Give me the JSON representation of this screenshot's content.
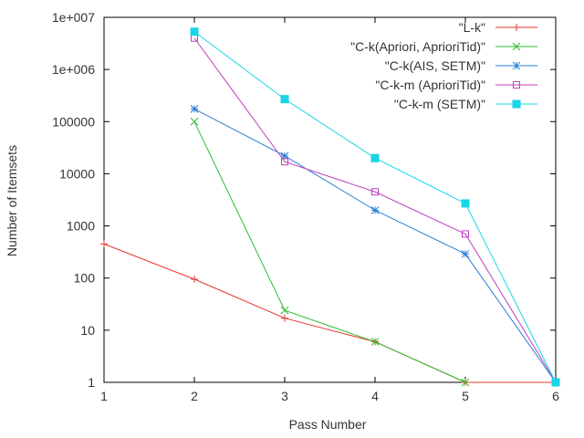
{
  "chart_data": {
    "type": "line",
    "xlabel": "Pass Number",
    "ylabel": "Number of Itemsets",
    "yscale": "log",
    "xlim": [
      1,
      6
    ],
    "ylim": [
      1,
      10000000
    ],
    "xticks": [
      {
        "value": 1,
        "label": "1"
      },
      {
        "value": 2,
        "label": "2"
      },
      {
        "value": 3,
        "label": "3"
      },
      {
        "value": 4,
        "label": "4"
      },
      {
        "value": 5,
        "label": "5"
      },
      {
        "value": 6,
        "label": "6"
      }
    ],
    "yticks": [
      {
        "value": 1,
        "label": "1"
      },
      {
        "value": 10,
        "label": "10"
      },
      {
        "value": 100,
        "label": "100"
      },
      {
        "value": 1000,
        "label": "1000"
      },
      {
        "value": 10000,
        "label": "10000"
      },
      {
        "value": 100000,
        "label": "100000"
      },
      {
        "value": 1000000,
        "label": "1e+006"
      },
      {
        "value": 10000000,
        "label": "1e+007"
      }
    ],
    "grid": false,
    "legend_position": "top-right",
    "series": [
      {
        "name": "\"L-k\"",
        "color": "#e8352e",
        "marker": "plus",
        "points": [
          [
            1,
            450
          ],
          [
            2,
            95
          ],
          [
            3,
            17
          ],
          [
            4,
            6
          ],
          [
            5,
            1
          ],
          [
            6,
            1
          ]
        ]
      },
      {
        "name": "\"C-k(Apriori, AprioriTid)\"",
        "color": "#2fbd2f",
        "marker": "cross",
        "points": [
          [
            2,
            100000
          ],
          [
            3,
            24
          ],
          [
            4,
            6
          ],
          [
            5,
            1
          ]
        ]
      },
      {
        "name": "\"C-k(AIS, SETM)\"",
        "color": "#2a7fd4",
        "marker": "star",
        "points": [
          [
            2,
            175000
          ],
          [
            3,
            22000
          ],
          [
            4,
            2000
          ],
          [
            5,
            290
          ],
          [
            6,
            1
          ]
        ]
      },
      {
        "name": "\"C-k-m (AprioriTid)\"",
        "color": "#bf3fbf",
        "marker": "square-open",
        "points": [
          [
            2,
            4000000
          ],
          [
            3,
            17000
          ],
          [
            4,
            4500
          ],
          [
            5,
            700
          ],
          [
            6,
            1
          ]
        ]
      },
      {
        "name": "\"C-k-m (SETM)\"",
        "color": "#17d6e6",
        "marker": "square-filled",
        "points": [
          [
            2,
            5300000
          ],
          [
            3,
            270000
          ],
          [
            4,
            20000
          ],
          [
            5,
            2700
          ],
          [
            6,
            1
          ]
        ]
      }
    ]
  }
}
